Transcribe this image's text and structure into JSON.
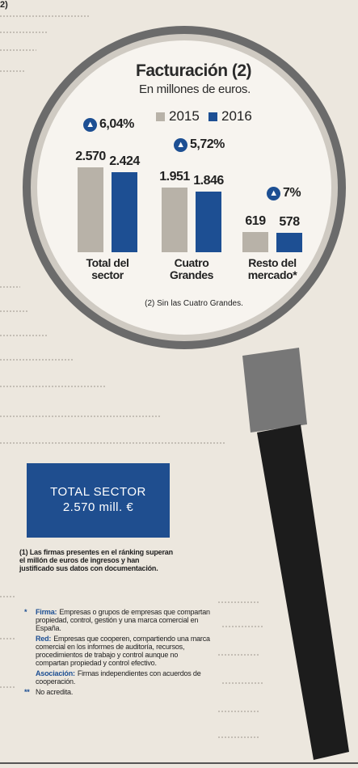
{
  "chart_data": {
    "type": "bar",
    "title": "Facturación (2)",
    "subtitle": "En millones de euros.",
    "categories": [
      "Total del sector",
      "Cuatro Grandes",
      "Resto del mercado*"
    ],
    "series": [
      {
        "name": "2015",
        "color": "#b8b2a8",
        "values": [
          2570,
          1951,
          619
        ],
        "value_labels": [
          "2.570",
          "1.951",
          "619"
        ]
      },
      {
        "name": "2016",
        "color": "#1d4f93",
        "values": [
          2424,
          1846,
          578
        ],
        "value_labels": [
          "2.424",
          "1.846",
          "578"
        ]
      }
    ],
    "changes": [
      {
        "value": 6.04,
        "label": "6,04%"
      },
      {
        "value": 5.72,
        "label": "5,72%"
      },
      {
        "value": 7,
        "label": "7%"
      }
    ],
    "note": "(2) Sin las Cuatro Grandes."
  },
  "corner": "2)",
  "box": {
    "title": "TOTAL SECTOR",
    "value": "2.570 mill. €"
  },
  "footnote1": "(1) Las firmas presentes en el ránking superan el millón de euros de ingresos y han justificado sus datos con documentación.",
  "definitions": [
    {
      "mark": "*",
      "term": "Firma:",
      "text": "Empresas o grupos de empresas que compartan propiedad, control, gestión y una marca comercial en España."
    },
    {
      "mark": "",
      "term": "Red:",
      "text": "Empresas que cooperen, compartiendo una marca comercial en los informes de auditoría, recursos, procedimientos de trabajo y control aunque no compartan propiedad y control efectivo."
    },
    {
      "mark": "",
      "term": "Asociación:",
      "text": "Firmas independientes con acuerdos de cooperación."
    },
    {
      "mark": "**",
      "term": "",
      "text": "No acredita."
    }
  ]
}
